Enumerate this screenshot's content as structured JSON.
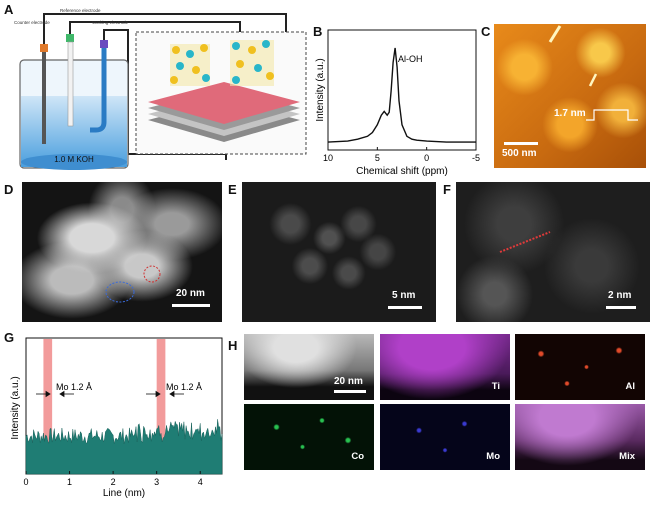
{
  "panel_labels": [
    "A",
    "B",
    "C",
    "D",
    "E",
    "F",
    "G",
    "H"
  ],
  "panelA": {
    "electrodes": {
      "counter": "Counter electrode",
      "reference": "Reference electrode",
      "working": "Working electrode"
    },
    "solution": "1.0 M KOH"
  },
  "panelC": {
    "height_label": "1.7 nm",
    "scale": "500 nm"
  },
  "panelD": {
    "scale": "20 nm"
  },
  "panelE": {
    "scale": "5 nm"
  },
  "panelF": {
    "scale": "2 nm"
  },
  "panelH": {
    "scale": "20 nm",
    "maps": [
      "Ti",
      "Al",
      "Co",
      "Mo",
      "Mix"
    ],
    "colors": {
      "Ti": "#b040c8",
      "Al": "#e04a2a",
      "Co": "#28c050",
      "Mo": "#3a3ad0"
    }
  },
  "chart_data": [
    {
      "panel": "B",
      "type": "line",
      "xlabel": "Chemical shift (ppm)",
      "ylabel": "Intensity (a.u.)",
      "xlim": [
        10,
        -5
      ],
      "xticks": [
        10,
        5,
        0,
        -5
      ],
      "annotation": "Al-OH",
      "x": [
        10,
        8,
        7,
        6,
        5.5,
        5,
        4.6,
        4.3,
        4.0,
        3.8,
        3.6,
        3.4,
        3.2,
        3.0,
        2.8,
        2.5,
        2.0,
        1.5,
        1,
        0,
        -2,
        -5
      ],
      "y": [
        0.02,
        0.03,
        0.05,
        0.08,
        0.12,
        0.2,
        0.3,
        0.34,
        0.3,
        0.33,
        0.55,
        0.85,
        1.0,
        0.8,
        0.45,
        0.2,
        0.08,
        0.05,
        0.04,
        0.03,
        0.02,
        0.02
      ]
    },
    {
      "panel": "G",
      "type": "area",
      "xlabel": "Line (nm)",
      "ylabel": "Intensity (a.u.)",
      "xlim": [
        0,
        4.5
      ],
      "xticks": [
        0,
        1,
        2,
        3,
        4
      ],
      "annotations": [
        "Mo 1.2 Å",
        "Mo 1.2 Å"
      ],
      "highlight_ranges": [
        [
          0.4,
          0.6
        ],
        [
          3.0,
          3.2
        ]
      ]
    }
  ]
}
